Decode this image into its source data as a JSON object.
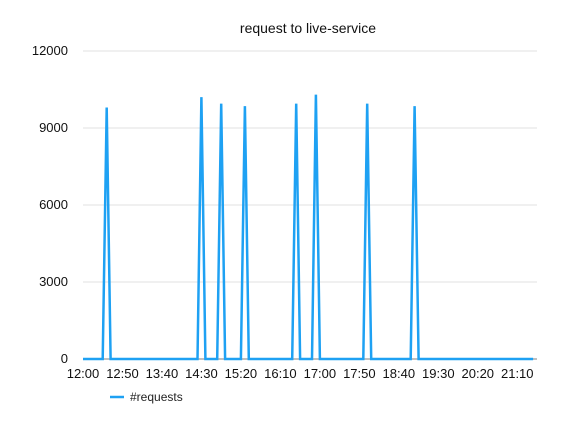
{
  "chart_data": {
    "type": "line",
    "title": "request to live-service",
    "xlabel": "",
    "ylabel": "",
    "ylim": [
      0,
      12000
    ],
    "yticks": [
      0,
      3000,
      6000,
      9000,
      12000
    ],
    "xlim": [
      "12:00",
      "21:35"
    ],
    "xticks": [
      "12:00",
      "12:50",
      "13:40",
      "14:30",
      "15:20",
      "16:10",
      "17:00",
      "17:50",
      "18:40",
      "19:30",
      "20:20",
      "21:10"
    ],
    "grid": "horizontal",
    "legend": "bottom-left",
    "series": [
      {
        "name": "#requests",
        "color": "#1ea1f3",
        "x": [
          "12:00",
          "12:25",
          "12:30",
          "12:35",
          "12:40",
          "14:25",
          "14:30",
          "14:35",
          "14:40",
          "14:50",
          "14:55",
          "15:00",
          "15:05",
          "15:20",
          "15:25",
          "15:30",
          "15:35",
          "16:25",
          "16:30",
          "16:35",
          "16:40",
          "16:50",
          "16:55",
          "17:00",
          "17:05",
          "17:55",
          "18:00",
          "18:05",
          "18:10",
          "18:55",
          "19:00",
          "19:05",
          "19:10",
          "19:50",
          "19:55",
          "20:00",
          "20:05",
          "21:15",
          "21:20",
          "21:25",
          "21:30"
        ],
        "y": [
          0,
          0,
          9800,
          0,
          0,
          0,
          10200,
          0,
          0,
          0,
          9950,
          0,
          0,
          0,
          9850,
          0,
          0,
          0,
          9950,
          0,
          0,
          0,
          10300,
          0,
          0,
          0,
          9950,
          0,
          0,
          0,
          9850,
          0,
          0,
          0,
          0,
          0,
          0,
          0,
          0,
          0,
          0
        ]
      }
    ]
  }
}
